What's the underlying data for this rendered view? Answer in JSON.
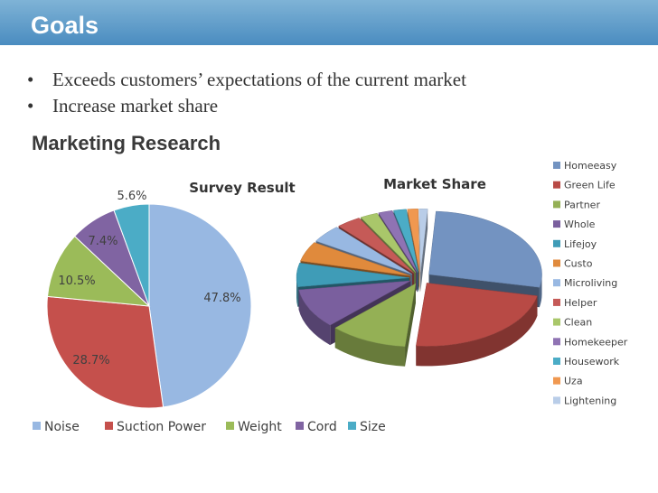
{
  "header": {
    "title": "Goals"
  },
  "bullets": [
    "Exceeds customers’ expectations of the current market",
    "Increase market share"
  ],
  "section_title": "Marketing Research",
  "colors": {
    "header_bg": "#4a8cc0",
    "text": "#333333"
  },
  "chart_data": [
    {
      "type": "pie",
      "title": "Survey Result",
      "categories": [
        "Noise",
        "Suction Power",
        "Weight",
        "Cord",
        "Size"
      ],
      "values": [
        47.8,
        28.7,
        10.5,
        7.4,
        5.6
      ],
      "data_labels": [
        "47.8%",
        "28.7%",
        "10.5%",
        "7.4%",
        "5.6%"
      ],
      "colors": [
        "#98b8e2",
        "#c5504c",
        "#9bbb59",
        "#8064a2",
        "#4bacc6"
      ],
      "legend_position": "bottom"
    },
    {
      "type": "pie",
      "title": "Market Share",
      "categories": [
        "Homeeasy",
        "Green Life",
        "Partner",
        "Whole",
        "Lifejoy",
        "Custo",
        "Microliving",
        "Helper",
        "Clean",
        "Homekeeper",
        "Housework",
        "Uza",
        "Lightening"
      ],
      "values": [
        27,
        23,
        11,
        10,
        6,
        5,
        4.5,
        3.5,
        2.5,
        2,
        1.8,
        1.5,
        1.2
      ],
      "colors": [
        "#7393c1",
        "#b84a45",
        "#94b055",
        "#7a5f9e",
        "#3f9cb7",
        "#e08a3c",
        "#98b8e2",
        "#c55a57",
        "#a9c76a",
        "#8f73b3",
        "#4bacc6",
        "#f09850",
        "#b9cde8"
      ],
      "legend_position": "right"
    }
  ]
}
